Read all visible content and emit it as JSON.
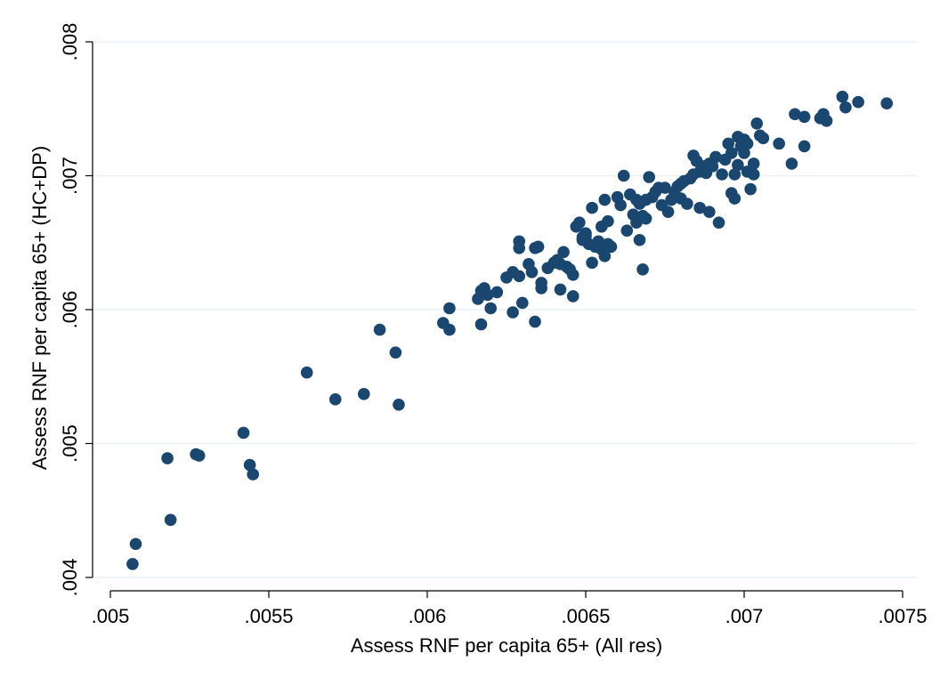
{
  "chart_data": {
    "type": "scatter",
    "xlabel": "Assess RNF per capita 65+ (All res)",
    "ylabel": "Assess RNF per capita 65+ (HC+DP)",
    "xlim": [
      0.005,
      0.0075
    ],
    "ylim": [
      0.004,
      0.008
    ],
    "xticks": [
      ".005",
      ".0055",
      ".006",
      ".0065",
      ".007",
      ".0075"
    ],
    "xtick_values": [
      0.005,
      0.0055,
      0.006,
      0.0065,
      0.007,
      0.0075
    ],
    "yticks": [
      ".004",
      ".005",
      ".006",
      ".007",
      ".008"
    ],
    "ytick_values": [
      0.004,
      0.005,
      0.006,
      0.007,
      0.008
    ],
    "grid": true,
    "marker_color": "#1a476f",
    "grid_color": "#eaf2f3",
    "points": [
      [
        0.00507,
        0.0041
      ],
      [
        0.00508,
        0.00425
      ],
      [
        0.00518,
        0.00489
      ],
      [
        0.00519,
        0.00443
      ],
      [
        0.00527,
        0.00492
      ],
      [
        0.00528,
        0.00491
      ],
      [
        0.00542,
        0.00508
      ],
      [
        0.00544,
        0.00484
      ],
      [
        0.00545,
        0.00477
      ],
      [
        0.00562,
        0.00553
      ],
      [
        0.00571,
        0.00533
      ],
      [
        0.0058,
        0.00537
      ],
      [
        0.00585,
        0.00585
      ],
      [
        0.0059,
        0.00568
      ],
      [
        0.00591,
        0.00529
      ],
      [
        0.00605,
        0.0059
      ],
      [
        0.00607,
        0.00601
      ],
      [
        0.00607,
        0.00585
      ],
      [
        0.00616,
        0.00608
      ],
      [
        0.00617,
        0.00614
      ],
      [
        0.00617,
        0.00589
      ],
      [
        0.00618,
        0.00616
      ],
      [
        0.00619,
        0.00611
      ],
      [
        0.0062,
        0.00601
      ],
      [
        0.00622,
        0.00613
      ],
      [
        0.00625,
        0.00624
      ],
      [
        0.00627,
        0.00628
      ],
      [
        0.00627,
        0.00598
      ],
      [
        0.00629,
        0.00651
      ],
      [
        0.00629,
        0.00646
      ],
      [
        0.00629,
        0.00625
      ],
      [
        0.0063,
        0.00605
      ],
      [
        0.00632,
        0.00634
      ],
      [
        0.00633,
        0.00628
      ],
      [
        0.00634,
        0.00646
      ],
      [
        0.00634,
        0.00591
      ],
      [
        0.00635,
        0.00647
      ],
      [
        0.00636,
        0.00616
      ],
      [
        0.00636,
        0.0062
      ],
      [
        0.00638,
        0.00631
      ],
      [
        0.0064,
        0.00635
      ],
      [
        0.00641,
        0.00637
      ],
      [
        0.00642,
        0.00634
      ],
      [
        0.00642,
        0.00615
      ],
      [
        0.00643,
        0.00643
      ],
      [
        0.00644,
        0.00632
      ],
      [
        0.00645,
        0.0063
      ],
      [
        0.00646,
        0.00626
      ],
      [
        0.00646,
        0.0061
      ],
      [
        0.00647,
        0.00662
      ],
      [
        0.00648,
        0.00665
      ],
      [
        0.00649,
        0.00654
      ],
      [
        0.00649,
        0.00652
      ],
      [
        0.0065,
        0.00657
      ],
      [
        0.0065,
        0.00655
      ],
      [
        0.00651,
        0.00649
      ],
      [
        0.00652,
        0.00676
      ],
      [
        0.00652,
        0.00635
      ],
      [
        0.00653,
        0.00647
      ],
      [
        0.00654,
        0.00651
      ],
      [
        0.00655,
        0.00662
      ],
      [
        0.00655,
        0.00645
      ],
      [
        0.00656,
        0.00682
      ],
      [
        0.00656,
        0.0064
      ],
      [
        0.00657,
        0.00666
      ],
      [
        0.00657,
        0.00649
      ],
      [
        0.00658,
        0.00647
      ],
      [
        0.0066,
        0.00684
      ],
      [
        0.00661,
        0.00678
      ],
      [
        0.00662,
        0.007
      ],
      [
        0.00663,
        0.00659
      ],
      [
        0.00664,
        0.00686
      ],
      [
        0.00665,
        0.00671
      ],
      [
        0.00666,
        0.00682
      ],
      [
        0.00666,
        0.00665
      ],
      [
        0.00667,
        0.00679
      ],
      [
        0.00667,
        0.00652
      ],
      [
        0.00668,
        0.0067
      ],
      [
        0.00668,
        0.0063
      ],
      [
        0.00669,
        0.00682
      ],
      [
        0.00669,
        0.00668
      ],
      [
        0.0067,
        0.00699
      ],
      [
        0.00671,
        0.00684
      ],
      [
        0.00672,
        0.00688
      ],
      [
        0.00673,
        0.00691
      ],
      [
        0.00674,
        0.00678
      ],
      [
        0.00675,
        0.00691
      ],
      [
        0.00676,
        0.00673
      ],
      [
        0.00677,
        0.00682
      ],
      [
        0.00678,
        0.00688
      ],
      [
        0.00679,
        0.00692
      ],
      [
        0.0068,
        0.00683
      ],
      [
        0.0068,
        0.00694
      ],
      [
        0.00681,
        0.00696
      ],
      [
        0.00682,
        0.00679
      ],
      [
        0.00683,
        0.00698
      ],
      [
        0.00684,
        0.00715
      ],
      [
        0.00684,
        0.00701
      ],
      [
        0.00685,
        0.00711
      ],
      [
        0.00686,
        0.00703
      ],
      [
        0.00686,
        0.00676
      ],
      [
        0.00687,
        0.00707
      ],
      [
        0.00688,
        0.00702
      ],
      [
        0.00689,
        0.00709
      ],
      [
        0.00689,
        0.00673
      ],
      [
        0.0069,
        0.00707
      ],
      [
        0.00691,
        0.00714
      ],
      [
        0.00692,
        0.00665
      ],
      [
        0.00693,
        0.00701
      ],
      [
        0.00694,
        0.00712
      ],
      [
        0.00695,
        0.00724
      ],
      [
        0.00696,
        0.00717
      ],
      [
        0.00696,
        0.00687
      ],
      [
        0.00697,
        0.00683
      ],
      [
        0.00697,
        0.00701
      ],
      [
        0.00698,
        0.00729
      ],
      [
        0.00698,
        0.00708
      ],
      [
        0.00699,
        0.00722
      ],
      [
        0.007,
        0.00727
      ],
      [
        0.007,
        0.00717
      ],
      [
        0.00701,
        0.00724
      ],
      [
        0.00701,
        0.00703
      ],
      [
        0.00702,
        0.0069
      ],
      [
        0.00703,
        0.00709
      ],
      [
        0.00703,
        0.00701
      ],
      [
        0.00704,
        0.00739
      ],
      [
        0.00705,
        0.0073
      ],
      [
        0.00706,
        0.00728
      ],
      [
        0.00711,
        0.00724
      ],
      [
        0.00715,
        0.00709
      ],
      [
        0.00716,
        0.00746
      ],
      [
        0.00719,
        0.00744
      ],
      [
        0.00719,
        0.00722
      ],
      [
        0.00724,
        0.00743
      ],
      [
        0.00725,
        0.00746
      ],
      [
        0.00726,
        0.00741
      ],
      [
        0.00731,
        0.00759
      ],
      [
        0.00732,
        0.00751
      ],
      [
        0.00736,
        0.00755
      ],
      [
        0.00745,
        0.00754
      ]
    ]
  }
}
